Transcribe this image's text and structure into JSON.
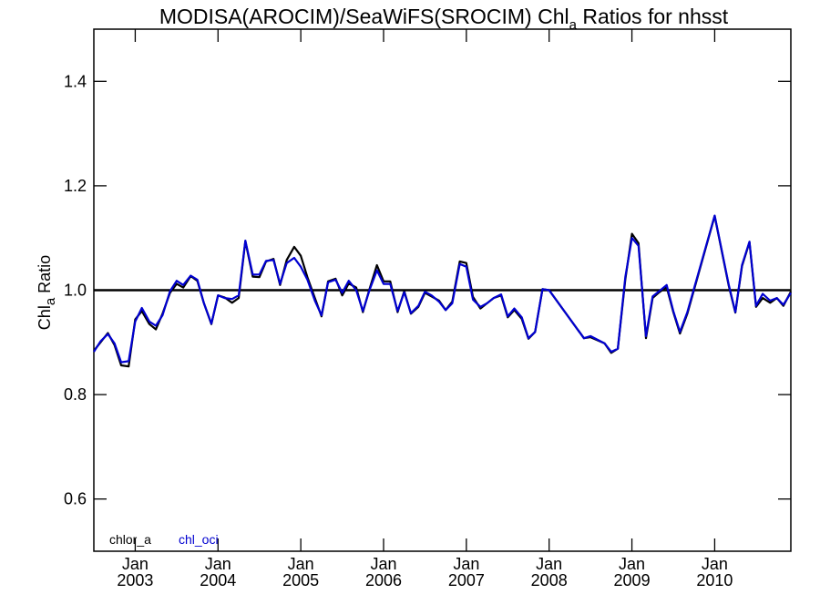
{
  "chart_data": {
    "type": "line",
    "title": {
      "prefix": "MODISA(AROCIM)/SeaWiFS(SROCIM)  Chl",
      "subscript": "a",
      "suffix": " Ratios for nhsst"
    },
    "ylabel": {
      "prefix": "Chl",
      "subscript": "a",
      "suffix": " Ratio"
    },
    "ylim": [
      0.5,
      1.5
    ],
    "yticks": [
      0.6,
      0.8,
      1.0,
      1.2,
      1.4
    ],
    "ytick_labels": [
      "0.6",
      "0.8",
      "1.0",
      "1.2",
      "1.4"
    ],
    "xlim": [
      2002.5,
      2010.92
    ],
    "xticks": [
      {
        "x": 2003.0,
        "line1": "Jan",
        "line2": "2003"
      },
      {
        "x": 2004.0,
        "line1": "Jan",
        "line2": "2004"
      },
      {
        "x": 2005.0,
        "line1": "Jan",
        "line2": "2005"
      },
      {
        "x": 2006.0,
        "line1": "Jan",
        "line2": "2006"
      },
      {
        "x": 2007.0,
        "line1": "Jan",
        "line2": "2007"
      },
      {
        "x": 2008.0,
        "line1": "Jan",
        "line2": "2008"
      },
      {
        "x": 2009.0,
        "line1": "Jan",
        "line2": "2009"
      },
      {
        "x": 2010.0,
        "line1": "Jan",
        "line2": "2010"
      }
    ],
    "reference_line": 1.0,
    "grid": false,
    "legend_position": "bottom-left",
    "series": [
      {
        "name": "chlor_a",
        "color": "#000000",
        "x": [
          2002.5,
          2002.58,
          2002.67,
          2002.75,
          2002.83,
          2002.92,
          2003.0,
          2003.08,
          2003.17,
          2003.25,
          2003.33,
          2003.42,
          2003.5,
          2003.58,
          2003.67,
          2003.75,
          2003.83,
          2003.92,
          2004.0,
          2004.08,
          2004.17,
          2004.25,
          2004.33,
          2004.42,
          2004.5,
          2004.58,
          2004.67,
          2004.75,
          2004.83,
          2004.92,
          2005.0,
          2005.08,
          2005.17,
          2005.25,
          2005.33,
          2005.42,
          2005.5,
          2005.58,
          2005.67,
          2005.75,
          2005.83,
          2005.92,
          2006.0,
          2006.08,
          2006.17,
          2006.25,
          2006.33,
          2006.42,
          2006.5,
          2006.58,
          2006.67,
          2006.75,
          2006.83,
          2006.92,
          2007.0,
          2007.08,
          2007.17,
          2007.25,
          2007.33,
          2007.42,
          2007.5,
          2007.58,
          2007.67,
          2007.75,
          2007.83,
          2007.92,
          2008.0,
          2008.42,
          2008.5,
          2008.67,
          2008.75,
          2008.83,
          2008.92,
          2009.0,
          2009.08,
          2009.17,
          2009.25,
          2009.33,
          2009.42,
          2009.5,
          2009.58,
          2009.67,
          2010.0,
          2010.17,
          2010.25,
          2010.33,
          2010.42,
          2010.5,
          2010.58,
          2010.67,
          2010.75,
          2010.83,
          2010.92
        ],
        "y": [
          0.884,
          0.9,
          0.918,
          0.895,
          0.856,
          0.854,
          0.944,
          0.96,
          0.935,
          0.925,
          0.955,
          0.995,
          1.012,
          1.005,
          1.027,
          1.018,
          0.975,
          0.935,
          0.99,
          0.986,
          0.976,
          0.985,
          1.094,
          1.026,
          1.025,
          1.055,
          1.06,
          1.01,
          1.058,
          1.083,
          1.066,
          1.025,
          0.985,
          0.95,
          1.017,
          1.022,
          0.99,
          1.013,
          1.005,
          0.958,
          1.002,
          1.048,
          1.017,
          1.017,
          0.958,
          0.998,
          0.955,
          0.968,
          0.995,
          0.988,
          0.98,
          0.962,
          0.978,
          1.055,
          1.052,
          0.987,
          0.965,
          0.975,
          0.985,
          0.99,
          0.948,
          0.962,
          0.945,
          0.907,
          0.92,
          1.002,
          1.0,
          0.908,
          0.91,
          0.898,
          0.88,
          0.888,
          1.02,
          1.108,
          1.09,
          0.908,
          0.985,
          0.996,
          1.006,
          0.958,
          0.917,
          0.955,
          1.142,
          1.008,
          0.957,
          1.046,
          1.092,
          0.968,
          0.985,
          0.976,
          0.985,
          0.97,
          0.997
        ]
      },
      {
        "name": "chl_oci",
        "color": "#0000d0",
        "x": [
          2002.5,
          2002.58,
          2002.67,
          2002.75,
          2002.83,
          2002.92,
          2003.0,
          2003.08,
          2003.17,
          2003.25,
          2003.33,
          2003.42,
          2003.5,
          2003.58,
          2003.67,
          2003.75,
          2003.83,
          2003.92,
          2004.0,
          2004.08,
          2004.17,
          2004.25,
          2004.33,
          2004.42,
          2004.5,
          2004.58,
          2004.67,
          2004.75,
          2004.83,
          2004.92,
          2005.0,
          2005.08,
          2005.17,
          2005.25,
          2005.33,
          2005.42,
          2005.5,
          2005.58,
          2005.67,
          2005.75,
          2005.83,
          2005.92,
          2006.0,
          2006.08,
          2006.17,
          2006.25,
          2006.33,
          2006.42,
          2006.5,
          2006.58,
          2006.67,
          2006.75,
          2006.83,
          2006.92,
          2007.0,
          2007.08,
          2007.17,
          2007.25,
          2007.33,
          2007.42,
          2007.5,
          2007.58,
          2007.67,
          2007.75,
          2007.83,
          2007.92,
          2008.0,
          2008.42,
          2008.5,
          2008.67,
          2008.75,
          2008.83,
          2008.92,
          2009.0,
          2009.08,
          2009.17,
          2009.25,
          2009.33,
          2009.42,
          2009.5,
          2009.58,
          2009.67,
          2010.0,
          2010.17,
          2010.25,
          2010.33,
          2010.42,
          2010.5,
          2010.58,
          2010.67,
          2010.75,
          2010.83,
          2010.92
        ],
        "y": [
          0.882,
          0.902,
          0.916,
          0.898,
          0.862,
          0.864,
          0.94,
          0.966,
          0.94,
          0.932,
          0.952,
          0.998,
          1.018,
          1.01,
          1.028,
          1.02,
          0.975,
          0.936,
          0.99,
          0.985,
          0.983,
          0.99,
          1.095,
          1.03,
          1.03,
          1.056,
          1.058,
          1.012,
          1.052,
          1.062,
          1.045,
          1.02,
          0.98,
          0.952,
          1.015,
          1.02,
          0.995,
          1.018,
          1.0,
          0.96,
          1.0,
          1.038,
          1.012,
          1.012,
          0.96,
          0.996,
          0.956,
          0.97,
          0.997,
          0.99,
          0.978,
          0.962,
          0.975,
          1.05,
          1.045,
          0.982,
          0.968,
          0.975,
          0.985,
          0.992,
          0.95,
          0.965,
          0.948,
          0.908,
          0.92,
          1.002,
          1.0,
          0.908,
          0.912,
          0.898,
          0.882,
          0.888,
          1.025,
          1.1,
          1.085,
          0.912,
          0.988,
          0.998,
          1.01,
          0.96,
          0.92,
          0.958,
          1.143,
          1.01,
          0.958,
          1.048,
          1.093,
          0.97,
          0.993,
          0.98,
          0.985,
          0.972,
          0.995
        ]
      }
    ]
  }
}
